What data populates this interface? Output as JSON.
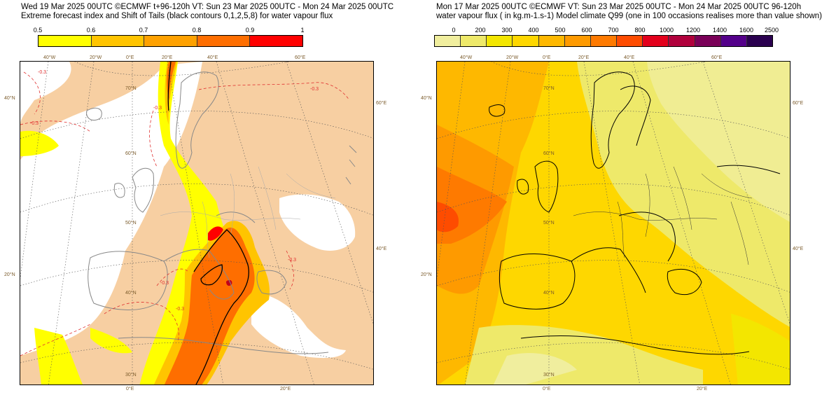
{
  "left": {
    "title_line1": "Wed 19 Mar 2025 00UTC ©ECMWF t+96-120h  VT: Sun 23 Mar 2025 00UTC - Mon 24 Mar 2025 00UTC",
    "title_line2": "Extreme forecast index and Shift of Tails (black contours 0,1,2,5,8) for water vapour flux",
    "colorbar_labels": [
      "0.5",
      "0.6",
      "0.7",
      "0.8",
      "0.9",
      "1"
    ],
    "colorbar_colors": [
      "#ffff00",
      "#ffc400",
      "#fea100",
      "#fe6e00",
      "#ff0000"
    ],
    "top_lon_labels": [
      "40°W",
      "20°W",
      "0°E",
      "20°E",
      "40°E",
      "60°E"
    ],
    "bottom_lon_labels": [
      "0°E",
      "20°E"
    ],
    "left_lat_labels": [
      "40°N",
      "20°N"
    ],
    "inner_lat_labels": [
      "70°N",
      "60°N",
      "50°N",
      "40°N",
      "30°N"
    ],
    "right_lat_labels": [
      "60°E",
      "40°E"
    ],
    "contour_labels": [
      "-0.3",
      "-0.3",
      "-0.3",
      "-0.3",
      "-0.3",
      "-0.3",
      "-0.3"
    ]
  },
  "right": {
    "title_line1": "Mon 17 Mar 2025 00UTC ©ECMWF VT: Sun 23 Mar 2025 00UTC - Mon 24 Mar 2025 00UTC   96-120h",
    "title_line2": "water vapour flux ( in kg.m-1.s-1)   Model climate Q99 (one in 100 occasions realises more than value shown)",
    "colorbar_labels": [
      "0",
      "200",
      "300",
      "400",
      "500",
      "600",
      "700",
      "800",
      "1000",
      "1200",
      "1400",
      "1600",
      "2500"
    ],
    "colorbar_colors": [
      "#f0ee9e",
      "#eee96a",
      "#f3e600",
      "#fed700",
      "#feb800",
      "#fe9a00",
      "#fe7a00",
      "#fe4c00",
      "#e3001c",
      "#b0003c",
      "#7a0058",
      "#54008a",
      "#2a004f"
    ],
    "top_lon_labels": [
      "40°W",
      "20°W",
      "0°E",
      "20°E",
      "40°E",
      "60°E"
    ],
    "bottom_lon_labels": [
      "0°E",
      "20°E"
    ],
    "left_lat_labels": [
      "40°N",
      "20°N"
    ],
    "inner_lat_labels": [
      "70°N",
      "60°N",
      "50°N",
      "40°N",
      "30°N"
    ],
    "right_lat_labels": [
      "60°E",
      "40°E"
    ]
  }
}
